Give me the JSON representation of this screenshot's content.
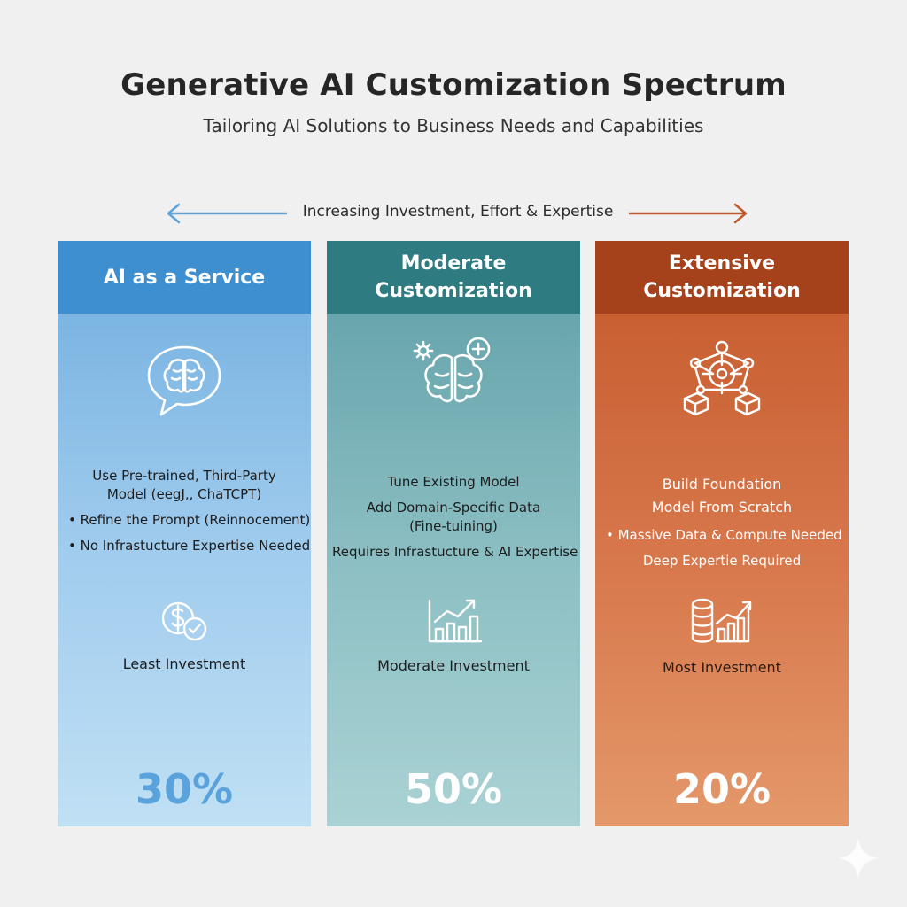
{
  "header": {
    "title": "Generative AI Customization Spectrum",
    "subtitle": "Tailoring AI Solutions to Business Needs and Capabilities"
  },
  "axis": {
    "label": "Increasing Investment, Effort & Expertise",
    "left_color": "#5da4dc",
    "right_color": "#c25a2c"
  },
  "panels": [
    {
      "title": "AI as a Service",
      "icon": "brain-chat-bubble-icon",
      "lines": [
        "Use Pre-trained, Third-Party Model (eegJ,, ChaTCPT)",
        "• Refine the Prompt (Reinnocement)",
        "• No Infrastucture Expertise Needed"
      ],
      "investment_icon": "dollar-check-icon",
      "investment": "Least Investment",
      "percent": "30%",
      "header_color": "#3e8fcf"
    },
    {
      "title": "Moderate Customization",
      "icon": "brain-gear-plus-icon",
      "lines": [
        "Tune Existing Model",
        "Add Domain-Specific Data (Fine-tuining)",
        "Requires Infrastucture & AI Expertise"
      ],
      "investment_icon": "bar-chart-growth-icon",
      "investment": "Moderate Investment",
      "percent": "50%",
      "header_color": "#2e7b82"
    },
    {
      "title": "Extensive Customization",
      "icon": "network-target-icon",
      "lines": [
        "Build Foundation Model From Scratch",
        "• Massive Data & Compute Needed",
        "Deep Expertie Required"
      ],
      "investment_icon": "database-growth-icon",
      "investment": "Most Investment",
      "percent": "20%",
      "header_color": "#a5421c"
    }
  ]
}
